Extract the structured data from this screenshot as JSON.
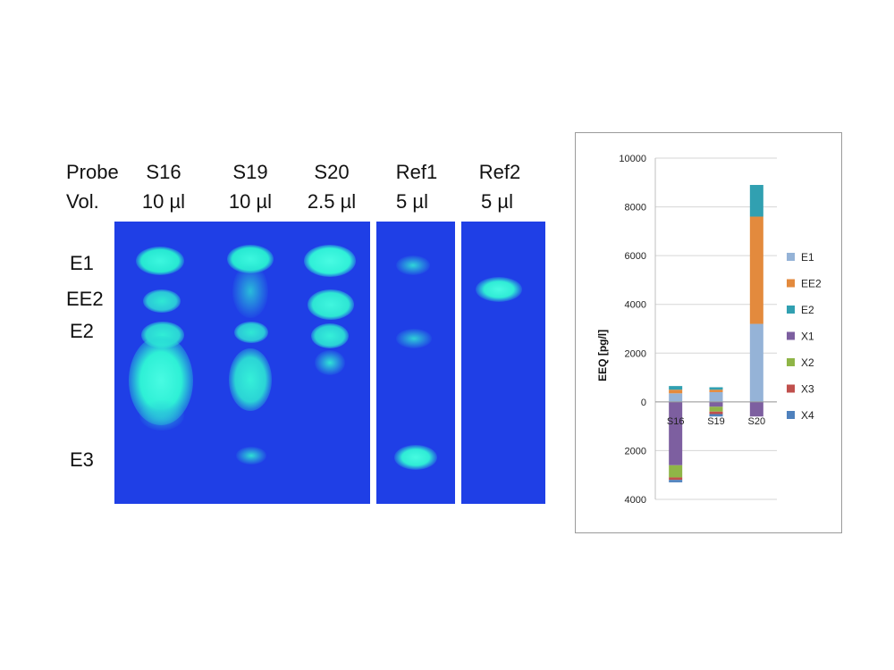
{
  "gel": {
    "row_labels": {
      "probe": "Probe",
      "volume": "Vol."
    },
    "lanes": [
      {
        "probe": "S16",
        "volume": "10 µl"
      },
      {
        "probe": "S19",
        "volume": "10 µl"
      },
      {
        "probe": "S20",
        "volume": "2.5 µl"
      },
      {
        "probe": "Ref1",
        "volume": "5 µl"
      },
      {
        "probe": "Ref2",
        "volume": "5 µl"
      }
    ],
    "band_labels": [
      "E1",
      "EE2",
      "E2",
      "E3"
    ],
    "colors": {
      "plate": "#1f3fe6",
      "spot": "#27f0d6"
    }
  },
  "chart_data": {
    "type": "bar",
    "stacked": true,
    "categories": [
      "S16",
      "S19",
      "S20"
    ],
    "ylabel": "EEQ [pg/l]",
    "ylim": [
      -4000,
      10000
    ],
    "yticks": [
      {
        "value": 10000,
        "label": "10000"
      },
      {
        "value": 8000,
        "label": "8000"
      },
      {
        "value": 6000,
        "label": "6000"
      },
      {
        "value": 4000,
        "label": "4000"
      },
      {
        "value": 2000,
        "label": "2000"
      },
      {
        "value": 0,
        "label": "0"
      },
      {
        "value": -2000,
        "label": "2000"
      },
      {
        "value": -4000,
        "label": "4000"
      }
    ],
    "grid": true,
    "legend_position": "right",
    "series": [
      {
        "name": "E1",
        "color": "#95b3d7",
        "values": [
          350,
          400,
          3200
        ]
      },
      {
        "name": "EE2",
        "color": "#e38a3d",
        "values": [
          150,
          100,
          4400
        ]
      },
      {
        "name": "E2",
        "color": "#31a0b1",
        "values": [
          150,
          100,
          1300
        ]
      },
      {
        "name": "X1",
        "color": "#7d5fa0",
        "values": [
          -2600,
          -200,
          -600
        ]
      },
      {
        "name": "X2",
        "color": "#8fb547",
        "values": [
          -500,
          -200,
          0
        ]
      },
      {
        "name": "X3",
        "color": "#c0504d",
        "values": [
          -100,
          -100,
          0
        ]
      },
      {
        "name": "X4",
        "color": "#4f81bd",
        "values": [
          -100,
          -100,
          0
        ]
      }
    ]
  }
}
